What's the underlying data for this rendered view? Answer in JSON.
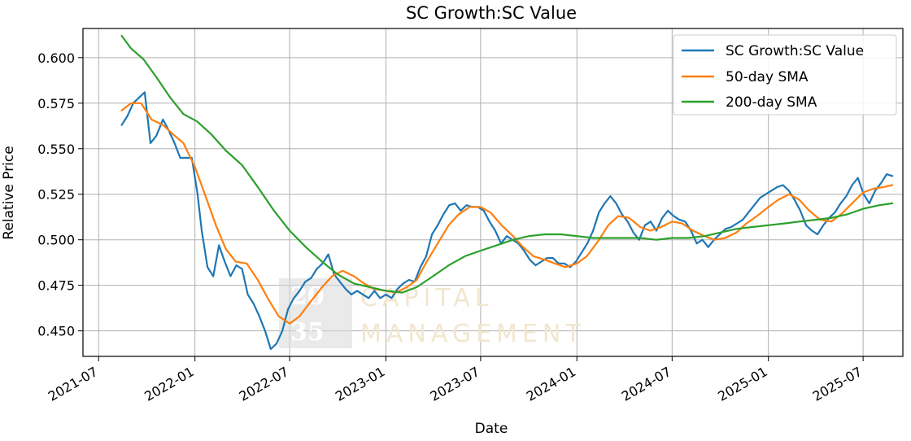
{
  "chart_data": {
    "type": "line",
    "title": "SC Growth:SC Value",
    "xlabel": "Date",
    "ylabel": "Relative Price",
    "xlim": [
      "2021-06-01",
      "2025-09-15"
    ],
    "ylim": [
      0.436,
      0.616
    ],
    "x_ticks": [
      "2021-07",
      "2022-01",
      "2022-07",
      "2023-01",
      "2023-07",
      "2024-01",
      "2024-07",
      "2025-01",
      "2025-07"
    ],
    "y_ticks": [
      "0.450",
      "0.475",
      "0.500",
      "0.525",
      "0.550",
      "0.575",
      "0.600"
    ],
    "grid": true,
    "legend_position": "top-right",
    "series": [
      {
        "name": "SC Growth:SC Value",
        "color": "#1f77b4",
        "points": [
          [
            "2021-08-14",
            0.563
          ],
          [
            "2021-08-25",
            0.568
          ],
          [
            "2021-09-05",
            0.575
          ],
          [
            "2021-09-16",
            0.578
          ],
          [
            "2021-09-27",
            0.581
          ],
          [
            "2021-10-08",
            0.553
          ],
          [
            "2021-10-19",
            0.557
          ],
          [
            "2021-11-01",
            0.566
          ],
          [
            "2021-11-12",
            0.56
          ],
          [
            "2021-11-23",
            0.553
          ],
          [
            "2021-12-04",
            0.545
          ],
          [
            "2021-12-15",
            0.545
          ],
          [
            "2021-12-26",
            0.545
          ],
          [
            "2022-01-06",
            0.525
          ],
          [
            "2022-01-14",
            0.505
          ],
          [
            "2022-01-25",
            0.485
          ],
          [
            "2022-02-05",
            0.48
          ],
          [
            "2022-02-16",
            0.497
          ],
          [
            "2022-02-27",
            0.488
          ],
          [
            "2022-03-10",
            0.48
          ],
          [
            "2022-03-21",
            0.486
          ],
          [
            "2022-04-01",
            0.484
          ],
          [
            "2022-04-12",
            0.47
          ],
          [
            "2022-04-23",
            0.465
          ],
          [
            "2022-05-04",
            0.458
          ],
          [
            "2022-05-15",
            0.45
          ],
          [
            "2022-05-26",
            0.44
          ],
          [
            "2022-06-06",
            0.443
          ],
          [
            "2022-06-17",
            0.45
          ],
          [
            "2022-06-28",
            0.462
          ],
          [
            "2022-07-09",
            0.468
          ],
          [
            "2022-07-20",
            0.472
          ],
          [
            "2022-07-31",
            0.477
          ],
          [
            "2022-08-11",
            0.479
          ],
          [
            "2022-08-22",
            0.484
          ],
          [
            "2022-09-02",
            0.487
          ],
          [
            "2022-09-13",
            0.492
          ],
          [
            "2022-09-24",
            0.481
          ],
          [
            "2022-10-05",
            0.477
          ],
          [
            "2022-10-16",
            0.473
          ],
          [
            "2022-10-27",
            0.47
          ],
          [
            "2022-11-07",
            0.472
          ],
          [
            "2022-11-18",
            0.47
          ],
          [
            "2022-11-29",
            0.468
          ],
          [
            "2022-12-10",
            0.472
          ],
          [
            "2022-12-21",
            0.468
          ],
          [
            "2023-01-01",
            0.47
          ],
          [
            "2023-01-12",
            0.468
          ],
          [
            "2023-01-23",
            0.473
          ],
          [
            "2023-02-03",
            0.476
          ],
          [
            "2023-02-14",
            0.478
          ],
          [
            "2023-02-25",
            0.477
          ],
          [
            "2023-03-08",
            0.485
          ],
          [
            "2023-03-19",
            0.491
          ],
          [
            "2023-03-30",
            0.503
          ],
          [
            "2023-04-10",
            0.508
          ],
          [
            "2023-04-21",
            0.514
          ],
          [
            "2023-05-02",
            0.519
          ],
          [
            "2023-05-13",
            0.52
          ],
          [
            "2023-05-24",
            0.516
          ],
          [
            "2023-06-04",
            0.519
          ],
          [
            "2023-06-15",
            0.518
          ],
          [
            "2023-06-26",
            0.518
          ],
          [
            "2023-07-07",
            0.516
          ],
          [
            "2023-07-18",
            0.51
          ],
          [
            "2023-07-29",
            0.505
          ],
          [
            "2023-08-09",
            0.498
          ],
          [
            "2023-08-20",
            0.502
          ],
          [
            "2023-08-31",
            0.5
          ],
          [
            "2023-09-11",
            0.498
          ],
          [
            "2023-09-22",
            0.494
          ],
          [
            "2023-10-03",
            0.489
          ],
          [
            "2023-10-14",
            0.486
          ],
          [
            "2023-10-25",
            0.488
          ],
          [
            "2023-11-05",
            0.49
          ],
          [
            "2023-11-16",
            0.49
          ],
          [
            "2023-11-27",
            0.487
          ],
          [
            "2023-12-08",
            0.487
          ],
          [
            "2023-12-19",
            0.485
          ],
          [
            "2023-12-30",
            0.488
          ],
          [
            "2024-01-10",
            0.493
          ],
          [
            "2024-01-21",
            0.498
          ],
          [
            "2024-02-01",
            0.505
          ],
          [
            "2024-02-12",
            0.515
          ],
          [
            "2024-02-23",
            0.52
          ],
          [
            "2024-03-05",
            0.524
          ],
          [
            "2024-03-16",
            0.52
          ],
          [
            "2024-03-27",
            0.514
          ],
          [
            "2024-04-07",
            0.51
          ],
          [
            "2024-04-18",
            0.504
          ],
          [
            "2024-04-29",
            0.5
          ],
          [
            "2024-05-10",
            0.508
          ],
          [
            "2024-05-21",
            0.51
          ],
          [
            "2024-06-01",
            0.505
          ],
          [
            "2024-06-12",
            0.512
          ],
          [
            "2024-06-23",
            0.516
          ],
          [
            "2024-07-04",
            0.513
          ],
          [
            "2024-07-15",
            0.511
          ],
          [
            "2024-07-26",
            0.51
          ],
          [
            "2024-08-06",
            0.505
          ],
          [
            "2024-08-17",
            0.498
          ],
          [
            "2024-08-28",
            0.5
          ],
          [
            "2024-09-08",
            0.496
          ],
          [
            "2024-09-19",
            0.5
          ],
          [
            "2024-09-30",
            0.503
          ],
          [
            "2024-10-11",
            0.506
          ],
          [
            "2024-10-22",
            0.507
          ],
          [
            "2024-11-02",
            0.509
          ],
          [
            "2024-11-13",
            0.511
          ],
          [
            "2024-11-24",
            0.515
          ],
          [
            "2024-12-05",
            0.519
          ],
          [
            "2024-12-16",
            0.523
          ],
          [
            "2024-12-27",
            0.525
          ],
          [
            "2025-01-07",
            0.527
          ],
          [
            "2025-01-18",
            0.529
          ],
          [
            "2025-01-29",
            0.53
          ],
          [
            "2025-02-09",
            0.527
          ],
          [
            "2025-02-20",
            0.522
          ],
          [
            "2025-03-03",
            0.516
          ],
          [
            "2025-03-14",
            0.508
          ],
          [
            "2025-03-25",
            0.505
          ],
          [
            "2025-04-05",
            0.503
          ],
          [
            "2025-04-16",
            0.508
          ],
          [
            "2025-04-27",
            0.512
          ],
          [
            "2025-05-08",
            0.515
          ],
          [
            "2025-05-19",
            0.52
          ],
          [
            "2025-05-30",
            0.524
          ],
          [
            "2025-06-10",
            0.53
          ],
          [
            "2025-06-21",
            0.534
          ],
          [
            "2025-07-02",
            0.525
          ],
          [
            "2025-07-13",
            0.52
          ],
          [
            "2025-07-24",
            0.527
          ],
          [
            "2025-08-04",
            0.531
          ],
          [
            "2025-08-15",
            0.536
          ],
          [
            "2025-08-26",
            0.535
          ]
        ]
      },
      {
        "name": "50-day SMA",
        "color": "#ff7f0e",
        "points": [
          [
            "2021-08-14",
            0.571
          ],
          [
            "2021-09-01",
            0.575
          ],
          [
            "2021-09-20",
            0.575
          ],
          [
            "2021-10-10",
            0.566
          ],
          [
            "2021-11-01",
            0.563
          ],
          [
            "2021-11-20",
            0.558
          ],
          [
            "2021-12-10",
            0.553
          ],
          [
            "2022-01-01",
            0.54
          ],
          [
            "2022-01-20",
            0.525
          ],
          [
            "2022-02-10",
            0.508
          ],
          [
            "2022-03-01",
            0.495
          ],
          [
            "2022-03-20",
            0.488
          ],
          [
            "2022-04-10",
            0.487
          ],
          [
            "2022-05-01",
            0.478
          ],
          [
            "2022-05-20",
            0.468
          ],
          [
            "2022-06-10",
            0.458
          ],
          [
            "2022-07-01",
            0.454
          ],
          [
            "2022-07-20",
            0.458
          ],
          [
            "2022-08-10",
            0.466
          ],
          [
            "2022-09-01",
            0.474
          ],
          [
            "2022-09-20",
            0.48
          ],
          [
            "2022-10-10",
            0.483
          ],
          [
            "2022-11-01",
            0.48
          ],
          [
            "2022-11-20",
            0.476
          ],
          [
            "2022-12-10",
            0.473
          ],
          [
            "2023-01-01",
            0.472
          ],
          [
            "2023-01-20",
            0.471
          ],
          [
            "2023-02-10",
            0.474
          ],
          [
            "2023-03-01",
            0.478
          ],
          [
            "2023-03-20",
            0.488
          ],
          [
            "2023-04-10",
            0.498
          ],
          [
            "2023-05-01",
            0.508
          ],
          [
            "2023-05-20",
            0.514
          ],
          [
            "2023-06-10",
            0.518
          ],
          [
            "2023-07-01",
            0.518
          ],
          [
            "2023-07-20",
            0.515
          ],
          [
            "2023-08-10",
            0.508
          ],
          [
            "2023-09-01",
            0.502
          ],
          [
            "2023-09-20",
            0.496
          ],
          [
            "2023-10-10",
            0.491
          ],
          [
            "2023-11-01",
            0.489
          ],
          [
            "2023-11-20",
            0.487
          ],
          [
            "2023-12-10",
            0.485
          ],
          [
            "2024-01-01",
            0.487
          ],
          [
            "2024-01-20",
            0.491
          ],
          [
            "2024-02-10",
            0.499
          ],
          [
            "2024-03-01",
            0.508
          ],
          [
            "2024-03-20",
            0.513
          ],
          [
            "2024-04-10",
            0.512
          ],
          [
            "2024-05-01",
            0.507
          ],
          [
            "2024-05-20",
            0.505
          ],
          [
            "2024-06-10",
            0.507
          ],
          [
            "2024-07-01",
            0.51
          ],
          [
            "2024-07-20",
            0.509
          ],
          [
            "2024-08-10",
            0.505
          ],
          [
            "2024-09-01",
            0.502
          ],
          [
            "2024-09-20",
            0.5
          ],
          [
            "2024-10-10",
            0.501
          ],
          [
            "2024-11-01",
            0.504
          ],
          [
            "2024-11-20",
            0.509
          ],
          [
            "2024-12-10",
            0.513
          ],
          [
            "2025-01-01",
            0.518
          ],
          [
            "2025-01-20",
            0.522
          ],
          [
            "2025-02-10",
            0.525
          ],
          [
            "2025-03-01",
            0.522
          ],
          [
            "2025-03-20",
            0.516
          ],
          [
            "2025-04-10",
            0.511
          ],
          [
            "2025-05-01",
            0.51
          ],
          [
            "2025-05-20",
            0.514
          ],
          [
            "2025-06-10",
            0.52
          ],
          [
            "2025-07-01",
            0.526
          ],
          [
            "2025-07-20",
            0.528
          ],
          [
            "2025-08-10",
            0.529
          ],
          [
            "2025-08-26",
            0.53
          ]
        ]
      },
      {
        "name": "200-day SMA",
        "color": "#2ca02c",
        "points": [
          [
            "2021-08-14",
            0.612
          ],
          [
            "2021-09-01",
            0.605
          ],
          [
            "2021-09-25",
            0.599
          ],
          [
            "2021-10-20",
            0.589
          ],
          [
            "2021-11-15",
            0.578
          ],
          [
            "2021-12-10",
            0.569
          ],
          [
            "2022-01-05",
            0.565
          ],
          [
            "2022-02-01",
            0.558
          ],
          [
            "2022-03-01",
            0.549
          ],
          [
            "2022-04-01",
            0.541
          ],
          [
            "2022-05-01",
            0.529
          ],
          [
            "2022-06-01",
            0.516
          ],
          [
            "2022-07-01",
            0.505
          ],
          [
            "2022-08-01",
            0.496
          ],
          [
            "2022-09-01",
            0.488
          ],
          [
            "2022-10-01",
            0.481
          ],
          [
            "2022-11-01",
            0.476
          ],
          [
            "2022-12-01",
            0.474
          ],
          [
            "2023-01-01",
            0.472
          ],
          [
            "2023-02-01",
            0.471
          ],
          [
            "2023-03-01",
            0.474
          ],
          [
            "2023-04-01",
            0.48
          ],
          [
            "2023-05-01",
            0.486
          ],
          [
            "2023-06-01",
            0.491
          ],
          [
            "2023-07-01",
            0.494
          ],
          [
            "2023-08-01",
            0.497
          ],
          [
            "2023-09-01",
            0.5
          ],
          [
            "2023-10-01",
            0.502
          ],
          [
            "2023-11-01",
            0.503
          ],
          [
            "2023-12-01",
            0.503
          ],
          [
            "2024-01-01",
            0.502
          ],
          [
            "2024-02-01",
            0.501
          ],
          [
            "2024-03-01",
            0.501
          ],
          [
            "2024-04-01",
            0.501
          ],
          [
            "2024-05-01",
            0.501
          ],
          [
            "2024-06-01",
            0.5
          ],
          [
            "2024-07-01",
            0.501
          ],
          [
            "2024-08-01",
            0.501
          ],
          [
            "2024-09-01",
            0.502
          ],
          [
            "2024-10-01",
            0.504
          ],
          [
            "2024-11-01",
            0.506
          ],
          [
            "2024-12-01",
            0.507
          ],
          [
            "2025-01-01",
            0.508
          ],
          [
            "2025-02-01",
            0.509
          ],
          [
            "2025-03-01",
            0.51
          ],
          [
            "2025-04-01",
            0.511
          ],
          [
            "2025-05-01",
            0.512
          ],
          [
            "2025-06-01",
            0.514
          ],
          [
            "2025-07-01",
            0.517
          ],
          [
            "2025-08-01",
            0.519
          ],
          [
            "2025-08-26",
            0.52
          ]
        ]
      }
    ]
  },
  "watermark": {
    "num_top": "20",
    "num_bottom": "35",
    "line1": "CAPITAL",
    "line2": "MANAGEMENT",
    "box_color": "#d9d9d9",
    "text_color": "#f1e7cf"
  }
}
